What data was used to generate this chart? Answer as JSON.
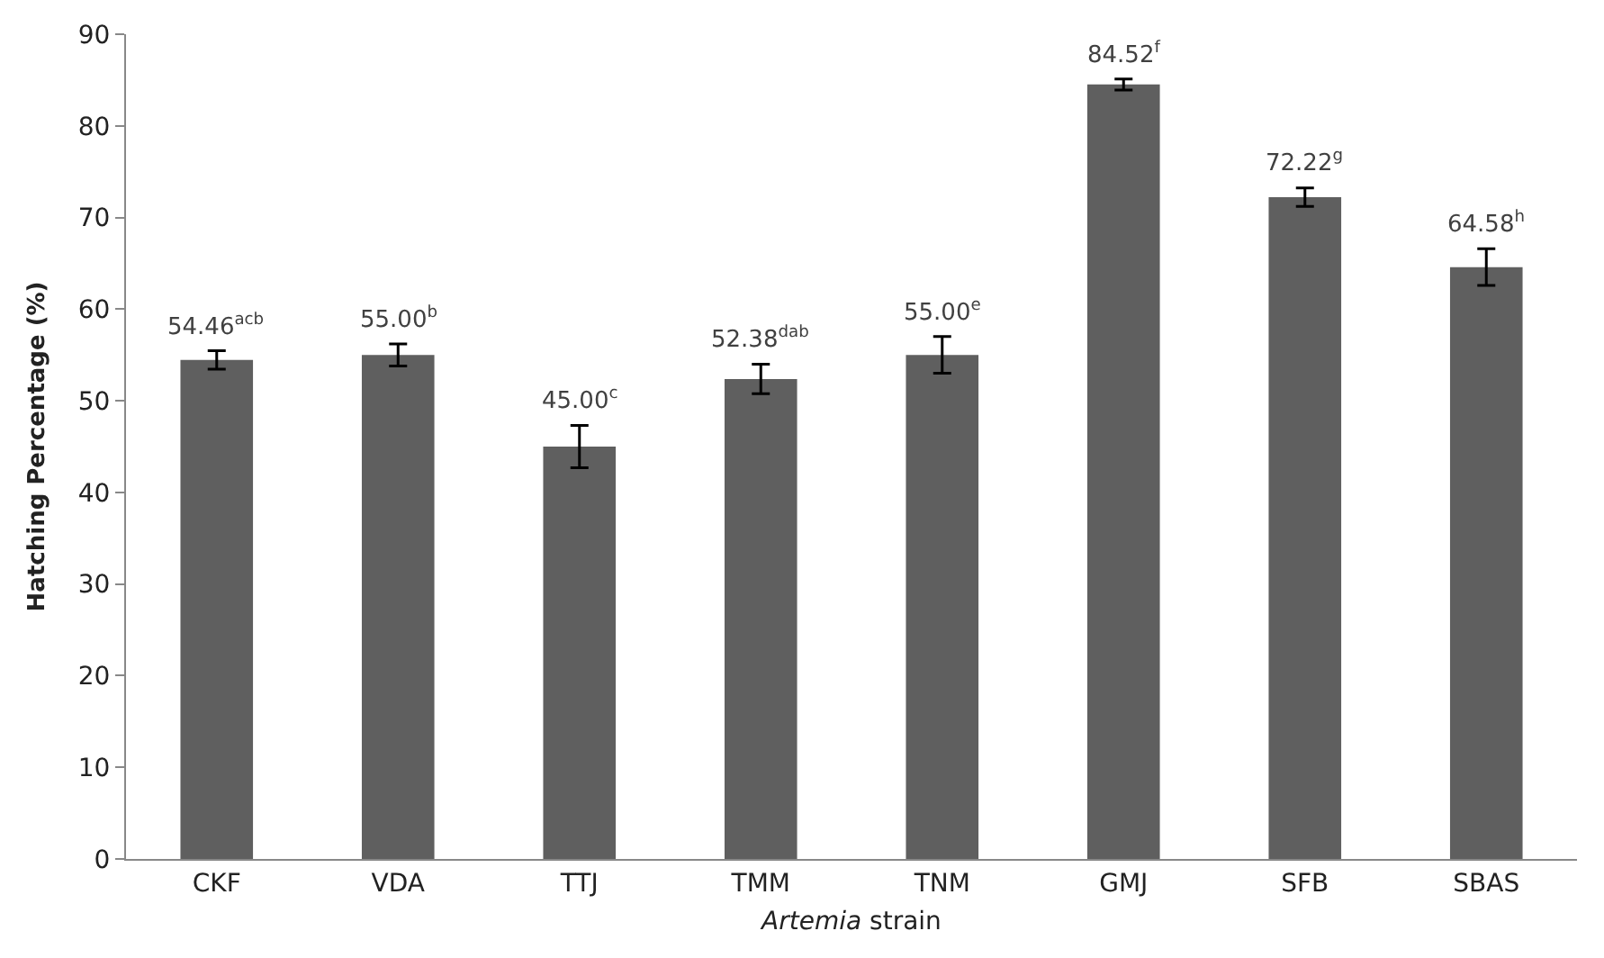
{
  "chart_data": {
    "type": "bar",
    "categories": [
      "CKF",
      "VDA",
      "TTJ",
      "TMM",
      "TNM",
      "GMJ",
      "SFB",
      "SBAS"
    ],
    "values": [
      54.46,
      55.0,
      45.0,
      52.38,
      55.0,
      84.52,
      72.22,
      64.58
    ],
    "errors": [
      1.0,
      1.2,
      2.3,
      1.6,
      2.0,
      0.6,
      1.0,
      2.0
    ],
    "value_labels": [
      "54.46$^{acb}$",
      "55.00$^{b}$",
      "45.00$^{c}$",
      "52.38$^{dab}$",
      "55.00$^{e}$",
      "84.52$^{f}$",
      "72.22$^{g}$",
      "64.58$^{h}$"
    ],
    "color": "#5f5f5f",
    "xlabel": "Artemia strain",
    "ylabel": "Hatching Percentage (%)",
    "ylim": [
      0,
      90
    ],
    "yticks": [
      0,
      10,
      20,
      30,
      40,
      50,
      60,
      70,
      80,
      90
    ]
  }
}
